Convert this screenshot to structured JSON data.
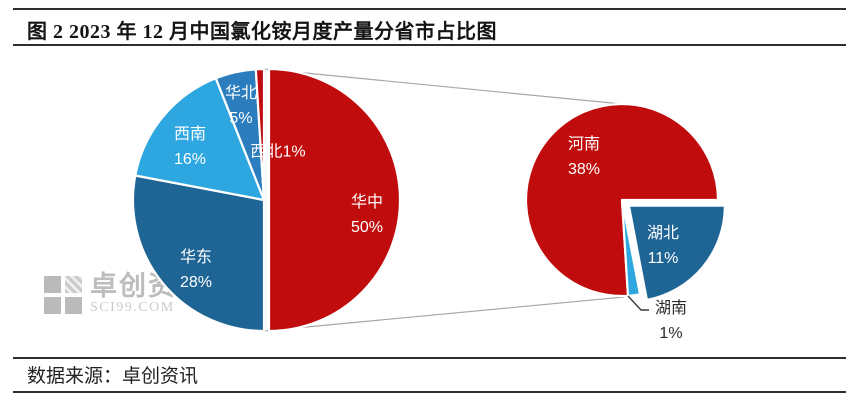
{
  "title": "图 2 2023 年 12 月中国氯化铵月度产量分省市占比图",
  "footer": {
    "source_label": "数据来源：卓创资讯"
  },
  "watermark": {
    "name": "卓创资讯",
    "domain": "SCI99.COM"
  },
  "colors": {
    "red": "#c00c0d",
    "dark_blue": "#1e6495",
    "light_blue": "#2ea7e0",
    "medium_blue": "#2b7dbd",
    "connector_gray": "#a8a8a8",
    "leader_dark": "#3a3a3a",
    "label_white": "#ffffff",
    "label_dark": "#2b2b2b"
  },
  "chart_data": {
    "type": "pie",
    "variant": "pie-of-pie",
    "title": "图 2 2023 年 12 月中国氯化铵月度产量分省市占比图",
    "unit": "%",
    "legend": "none",
    "main_pie": {
      "direction": "clockwise",
      "start_deg_from_top": 0,
      "slices": [
        {
          "key": "huazhong",
          "label": "华中",
          "value": 50,
          "pct_label": "50%",
          "color": "red"
        },
        {
          "key": "huadong",
          "label": "华东",
          "value": 28,
          "pct_label": "28%",
          "color": "dark_blue"
        },
        {
          "key": "xinan",
          "label": "西南",
          "value": 16,
          "pct_label": "16%",
          "color": "light_blue"
        },
        {
          "key": "huabei",
          "label": "华北",
          "value": 5,
          "pct_label": "5%",
          "color": "medium_blue"
        },
        {
          "key": "xibei",
          "label": "西北",
          "value": 1,
          "pct_label": "1%",
          "color": "red"
        }
      ]
    },
    "detail_pie": {
      "parent_slice": "华中",
      "direction": "clockwise",
      "slices": [
        {
          "key": "henan",
          "label": "河南",
          "value": 38,
          "pct_label": "38%",
          "color": "red"
        },
        {
          "key": "hubei",
          "label": "湖北",
          "value": 11,
          "pct_label": "11%",
          "color": "dark_blue"
        },
        {
          "key": "hunan",
          "label": "湖南",
          "value": 1,
          "pct_label": "1%",
          "color": "light_blue"
        }
      ]
    }
  }
}
